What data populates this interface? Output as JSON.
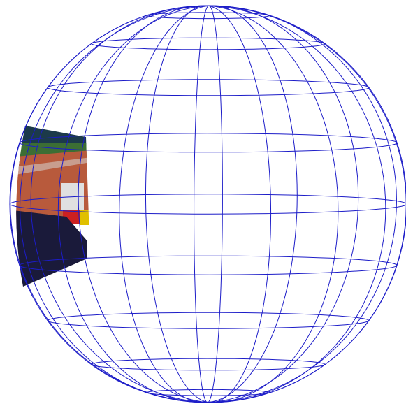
{
  "scene": {
    "background": "#ffffff",
    "wireframe_color": "#1c1cc8",
    "meridian_count": 16,
    "parallel_count": 9,
    "texture_patch": {
      "description_colors": {
        "sky": "#1c3a4a",
        "grass": "#3c6e34",
        "track": "#b85a3c",
        "signage": "#d8d8d8",
        "red_board": "#cc2020",
        "yellow_board": "#e0c000",
        "crowd": "#1a1a3a"
      }
    }
  }
}
